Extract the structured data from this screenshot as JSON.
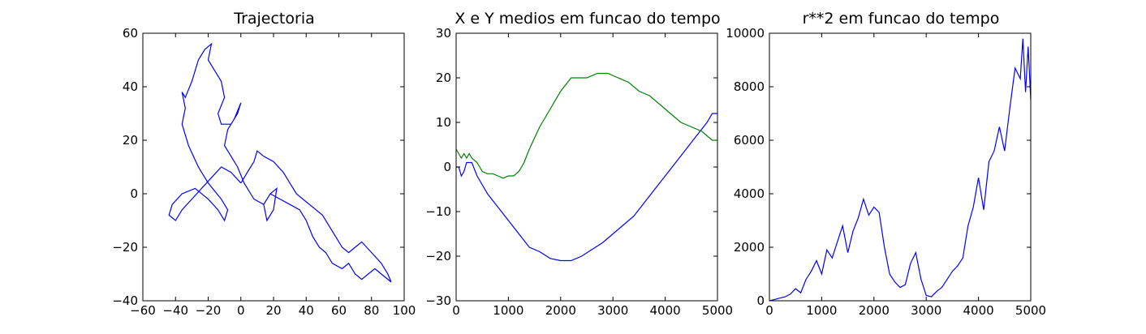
{
  "chart_data": [
    {
      "type": "line",
      "title": "Trajectoria",
      "xlabel": "",
      "ylabel": "",
      "xlim": [
        -60,
        100
      ],
      "ylim": [
        -40,
        60
      ],
      "xticks": [
        -60,
        -40,
        -20,
        0,
        20,
        40,
        60,
        80,
        100
      ],
      "yticks": [
        -40,
        -20,
        0,
        20,
        40,
        60
      ],
      "xtick_labels": [
        "−60",
        "−40",
        "−20",
        "0",
        "20",
        "40",
        "60",
        "80",
        "100"
      ],
      "ytick_labels": [
        "−40",
        "−20",
        "0",
        "20",
        "40",
        "60"
      ],
      "grid": false,
      "series": [
        {
          "color": "#0000ff",
          "x": [
            0,
            -6,
            -12,
            -18,
            -24,
            -30,
            -36,
            -40,
            -44,
            -42,
            -36,
            -28,
            -20,
            -14,
            -10,
            -8,
            -12,
            -20,
            -26,
            -32,
            -36,
            -34,
            -36,
            -34,
            -30,
            -26,
            -22,
            -18,
            -20,
            -16,
            -12,
            -10,
            -14,
            -12,
            -6,
            -2,
            0,
            -4,
            -8,
            -10,
            -6,
            -2,
            2,
            6,
            8,
            14,
            18,
            22,
            20,
            16,
            14,
            18,
            24,
            30,
            36,
            40,
            44,
            48,
            52,
            56,
            62,
            66,
            70,
            74,
            78,
            82,
            86,
            90,
            92,
            90,
            86,
            80,
            74,
            70,
            66,
            62,
            58,
            54,
            50,
            46,
            42,
            38,
            34,
            30,
            26,
            20,
            14,
            10,
            8,
            6,
            4,
            2,
            0
          ],
          "y": [
            4,
            8,
            10,
            6,
            2,
            -2,
            -6,
            -10,
            -8,
            -4,
            0,
            2,
            -2,
            -6,
            -10,
            -6,
            -2,
            4,
            10,
            18,
            26,
            32,
            38,
            36,
            42,
            50,
            54,
            56,
            50,
            46,
            42,
            36,
            30,
            26,
            26,
            30,
            34,
            28,
            24,
            18,
            14,
            10,
            4,
            0,
            -2,
            -4,
            0,
            2,
            -6,
            -10,
            -4,
            0,
            -2,
            -4,
            -6,
            -10,
            -16,
            -20,
            -22,
            -26,
            -28,
            -26,
            -30,
            -32,
            -30,
            -28,
            -30,
            -32,
            -33,
            -30,
            -26,
            -22,
            -18,
            -20,
            -22,
            -20,
            -16,
            -12,
            -8,
            -6,
            -4,
            -2,
            0,
            4,
            8,
            12,
            14,
            16,
            12,
            10,
            8,
            6,
            4
          ]
        }
      ]
    },
    {
      "type": "line",
      "title": "X e Y medios em funcao do tempo",
      "xlabel": "",
      "ylabel": "",
      "xlim": [
        0,
        5000
      ],
      "ylim": [
        -30,
        30
      ],
      "xticks": [
        0,
        1000,
        2000,
        3000,
        4000,
        5000
      ],
      "yticks": [
        -30,
        -20,
        -10,
        0,
        10,
        20,
        30
      ],
      "xtick_labels": [
        "0",
        "1000",
        "2000",
        "3000",
        "4000",
        "5000"
      ],
      "ytick_labels": [
        "−30",
        "−20",
        "−10",
        "0",
        "10",
        "20",
        "30"
      ],
      "grid": false,
      "series": [
        {
          "color": "#0000ff",
          "x": [
            0,
            50,
            100,
            150,
            200,
            300,
            400,
            500,
            600,
            800,
            1000,
            1200,
            1400,
            1600,
            1800,
            2000,
            2200,
            2400,
            2600,
            2800,
            3000,
            3200,
            3400,
            3600,
            3800,
            4000,
            4200,
            4400,
            4600,
            4800,
            4900,
            5000
          ],
          "y": [
            0,
            0,
            -2,
            -1,
            1,
            1,
            -2,
            -4,
            -6,
            -9,
            -12,
            -15,
            -18,
            -19,
            -20.5,
            -21,
            -21,
            -20,
            -18.5,
            -17,
            -15,
            -13,
            -11,
            -8,
            -5,
            -2,
            1,
            4,
            7,
            10,
            12,
            12
          ]
        },
        {
          "color": "#008000",
          "x": [
            0,
            50,
            100,
            150,
            200,
            250,
            300,
            400,
            500,
            600,
            700,
            800,
            900,
            1000,
            1100,
            1200,
            1300,
            1400,
            1600,
            1800,
            2000,
            2200,
            2300,
            2500,
            2700,
            2900,
            3100,
            3300,
            3500,
            3700,
            3900,
            4100,
            4300,
            4500,
            4700,
            4800,
            4900,
            5000
          ],
          "y": [
            4,
            3,
            2,
            3,
            2,
            3,
            2,
            1,
            -1,
            -1.5,
            -1.5,
            -2,
            -2.5,
            -2,
            -2,
            -1,
            1,
            4,
            9,
            13,
            17,
            20,
            20,
            20,
            21,
            21,
            20,
            19,
            17,
            16,
            14,
            12,
            10,
            9,
            8,
            7,
            6,
            6
          ]
        }
      ]
    },
    {
      "type": "line",
      "title": "r**2 em funcao do tempo",
      "xlabel": "",
      "ylabel": "",
      "xlim": [
        0,
        5000
      ],
      "ylim": [
        0,
        10000
      ],
      "xticks": [
        0,
        1000,
        2000,
        3000,
        4000,
        5000
      ],
      "yticks": [
        0,
        2000,
        4000,
        6000,
        8000,
        10000
      ],
      "xtick_labels": [
        "0",
        "1000",
        "2000",
        "3000",
        "4000",
        "5000"
      ],
      "ytick_labels": [
        "0",
        "2000",
        "4000",
        "6000",
        "8000",
        "10000"
      ],
      "grid": false,
      "series": [
        {
          "color": "#0000ff",
          "x": [
            0,
            100,
            200,
            300,
            400,
            500,
            600,
            700,
            800,
            900,
            1000,
            1100,
            1200,
            1300,
            1400,
            1500,
            1600,
            1700,
            1800,
            1900,
            2000,
            2100,
            2200,
            2300,
            2400,
            2500,
            2600,
            2700,
            2800,
            2900,
            3000,
            3100,
            3200,
            3300,
            3400,
            3500,
            3600,
            3700,
            3800,
            3900,
            4000,
            4100,
            4200,
            4300,
            4400,
            4500,
            4600,
            4700,
            4800,
            4850,
            4900,
            4950,
            5000
          ],
          "y": [
            0,
            50,
            100,
            150,
            250,
            450,
            300,
            800,
            1100,
            1500,
            1000,
            1900,
            1600,
            2200,
            2800,
            1800,
            2600,
            3100,
            3800,
            3200,
            3500,
            3300,
            2000,
            1000,
            700,
            500,
            600,
            1400,
            1800,
            800,
            200,
            150,
            350,
            500,
            800,
            1100,
            1300,
            1600,
            2800,
            3500,
            4600,
            3400,
            5200,
            5600,
            6500,
            5600,
            7200,
            8700,
            8300,
            9800,
            7800,
            9500,
            7500
          ]
        }
      ]
    }
  ]
}
